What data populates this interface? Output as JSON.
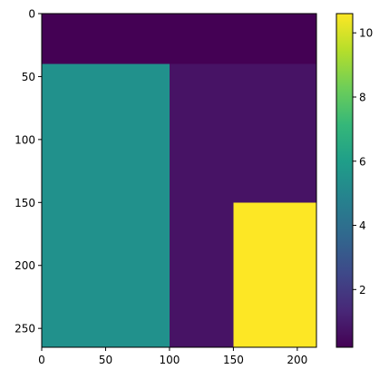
{
  "chart_data": {
    "type": "heatmap",
    "title": "",
    "xlabel": "",
    "ylabel": "",
    "xlim": [
      0,
      215
    ],
    "ylim": [
      265,
      0
    ],
    "y_axis_inverted": true,
    "grid": false,
    "colormap": "viridis",
    "x_ticks": [
      0,
      50,
      100,
      150,
      200
    ],
    "y_ticks": [
      0,
      50,
      100,
      150,
      200,
      250
    ],
    "x_tick_labels": [
      "0",
      "50",
      "100",
      "150",
      "200"
    ],
    "y_tick_labels": [
      "0",
      "50",
      "100",
      "150",
      "200",
      "250"
    ],
    "regions": [
      {
        "x0": 0,
        "x1": 215,
        "y0": 0,
        "y1": 40,
        "value": 0.2,
        "color": "#440154"
      },
      {
        "x0": 0,
        "x1": 100,
        "y0": 40,
        "y1": 265,
        "value": 5.4,
        "color": "#21918c"
      },
      {
        "x0": 100,
        "x1": 215,
        "y0": 40,
        "y1": 150,
        "value": 1.2,
        "color": "#471365"
      },
      {
        "x0": 100,
        "x1": 150,
        "y0": 150,
        "y1": 265,
        "value": 1.2,
        "color": "#471365"
      },
      {
        "x0": 150,
        "x1": 215,
        "y0": 150,
        "y1": 265,
        "value": 10.6,
        "color": "#fde725"
      }
    ],
    "colorbar": {
      "min": 0.2,
      "max": 10.6,
      "ticks": [
        2,
        4,
        6,
        8,
        10
      ],
      "tick_labels": [
        "2",
        "4",
        "6",
        "8",
        "10"
      ],
      "stops": [
        "#440154",
        "#482878",
        "#3e4989",
        "#31688e",
        "#26828e",
        "#1f9e89",
        "#35b779",
        "#6ece58",
        "#b5de2b",
        "#fde725"
      ]
    }
  }
}
